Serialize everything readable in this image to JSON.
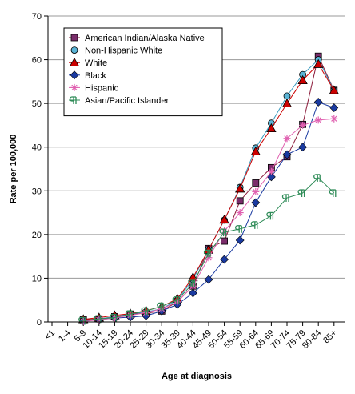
{
  "chart_data": {
    "type": "line",
    "title": "",
    "xlabel": "Age at diagnosis",
    "ylabel": "Rate per 100,000",
    "ylim": [
      0,
      70
    ],
    "yticks": [
      0,
      10,
      20,
      30,
      40,
      50,
      60,
      70
    ],
    "grid": "horizontal",
    "legend_position": "top-left",
    "categories": [
      "<1",
      "1-4",
      "5-9",
      "10-14",
      "15-19",
      "20-24",
      "25-29",
      "30-34",
      "35-39",
      "40-44",
      "45-49",
      "50-54",
      "55-59",
      "60-64",
      "65-69",
      "70-74",
      "75-79",
      "80-84",
      "85+"
    ],
    "series": [
      {
        "name": "American Indian/Alaska Native",
        "color": "#8b1a3a",
        "fill": "#7b2d6b",
        "marker": "square",
        "values": [
          null,
          null,
          0.5,
          0.7,
          1.2,
          1.8,
          2.0,
          2.5,
          4.6,
          8.2,
          16.8,
          18.5,
          27.7,
          31.8,
          35.3,
          37.8,
          45.2,
          60.8,
          53.0
        ]
      },
      {
        "name": "Non-Hispanic White",
        "color": "#3a9bbf",
        "fill": "#5ab4d6",
        "marker": "circle",
        "values": [
          null,
          null,
          0.2,
          0.7,
          1.2,
          1.8,
          2.3,
          3.0,
          5.0,
          9.7,
          16.6,
          23.3,
          30.8,
          39.8,
          45.5,
          51.7,
          56.6,
          60.0,
          53.0
        ]
      },
      {
        "name": "White",
        "color": "#cc0000",
        "fill": "#cc0000",
        "marker": "triangle",
        "values": [
          null,
          null,
          0.6,
          1.0,
          1.5,
          1.9,
          2.6,
          3.5,
          5.3,
          10.2,
          16.5,
          23.4,
          30.5,
          39.0,
          44.3,
          50.0,
          55.3,
          59.0,
          53.0
        ]
      },
      {
        "name": "Black",
        "color": "#1a3aa0",
        "fill": "#1a3aa0",
        "marker": "diamond",
        "values": [
          null,
          null,
          0.2,
          0.5,
          0.9,
          1.1,
          1.4,
          2.5,
          4.0,
          6.6,
          9.7,
          14.3,
          18.7,
          27.3,
          33.2,
          38.3,
          40.0,
          50.3,
          49.0
        ]
      },
      {
        "name": "Hispanic",
        "color": "#e060b0",
        "fill": "#e060b0",
        "marker": "star",
        "values": [
          null,
          null,
          0.1,
          0.5,
          0.9,
          1.5,
          2.1,
          3.0,
          4.6,
          8.2,
          14.7,
          20.8,
          25.0,
          29.8,
          34.4,
          42.0,
          45.0,
          46.2,
          46.5
        ]
      },
      {
        "name": "Asian/Pacific Islander",
        "color": "#2e8b57",
        "fill": "#2e8b57",
        "marker": "pilcrow",
        "values": [
          null,
          null,
          0.3,
          0.7,
          1.0,
          1.8,
          2.5,
          3.6,
          5.0,
          8.8,
          15.7,
          20.5,
          21.3,
          22.2,
          24.3,
          28.4,
          29.5,
          33.0,
          29.5
        ]
      }
    ]
  }
}
